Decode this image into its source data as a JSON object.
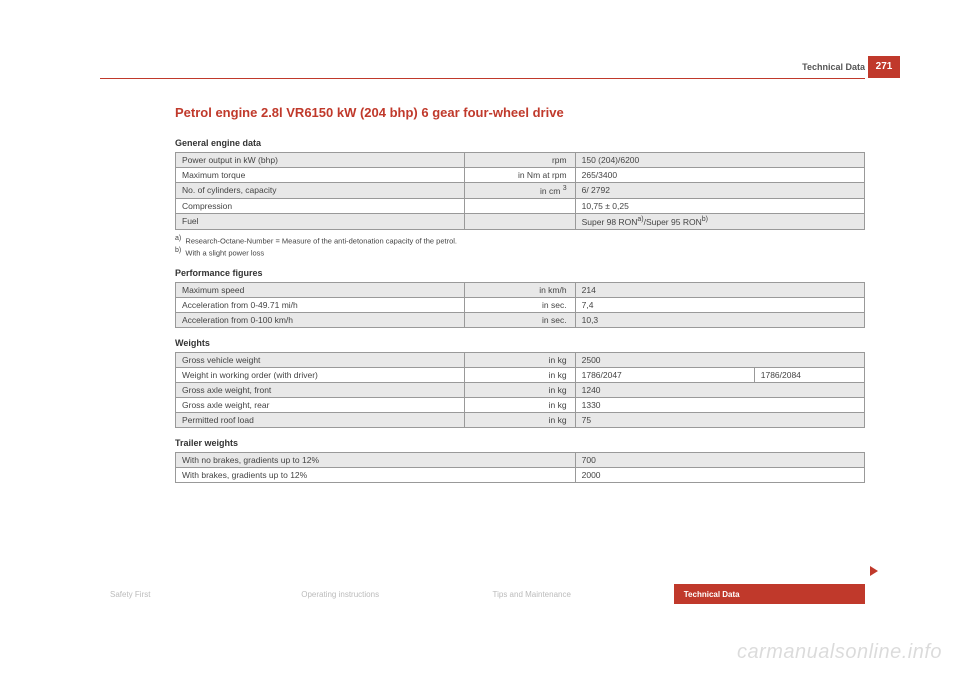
{
  "header": {
    "section": "Technical Data",
    "page_number": "271"
  },
  "title": "Petrol engine 2.8l VR6150 kW (204 bhp) 6 gear four-wheel drive",
  "general_engine": {
    "label": "General engine data",
    "rows": [
      {
        "label": "Power output in kW (bhp)",
        "unit": "rpm",
        "value": "150 (204)/6200"
      },
      {
        "label": "Maximum torque",
        "unit": "in Nm at rpm",
        "value": "265/3400"
      },
      {
        "label": "No. of cylinders, capacity",
        "unit": "in cm",
        "unit_sup": "3",
        "value": "6/ 2792"
      },
      {
        "label": "Compression",
        "unit": "",
        "value": "10,75 ± 0,25"
      },
      {
        "label": "Fuel",
        "unit": "",
        "value_html": "Super 98 RON",
        "sup1": "a)",
        "value_tail": "/Super 95 RON",
        "sup2": "b)"
      }
    ],
    "footnotes": [
      {
        "mark": "a)",
        "text": "Research-Octane-Number = Measure of the anti-detonation capacity of the petrol."
      },
      {
        "mark": "b)",
        "text": "With a slight power loss"
      }
    ]
  },
  "performance": {
    "label": "Performance figures",
    "rows": [
      {
        "label": "Maximum speed",
        "unit": "in km/h",
        "value": "214"
      },
      {
        "label": "Acceleration from 0-49.71 mi/h",
        "unit": "in sec.",
        "value": "7,4"
      },
      {
        "label": "Acceleration from 0-100 km/h",
        "unit": "in sec.",
        "value": "10,3"
      }
    ]
  },
  "weights": {
    "label": "Weights",
    "rows": [
      {
        "label": "Gross vehicle weight",
        "unit": "in kg",
        "value": "2500",
        "value2": ""
      },
      {
        "label": "Weight in working order (with driver)",
        "unit": "in kg",
        "value": "1786/2047",
        "value2": "1786/2084"
      },
      {
        "label": "Gross axle weight, front",
        "unit": "in kg",
        "value": "1240",
        "value2": ""
      },
      {
        "label": "Gross axle weight, rear",
        "unit": "in kg",
        "value": "1330",
        "value2": ""
      },
      {
        "label": "Permitted roof load",
        "unit": "in kg",
        "value": "75",
        "value2": ""
      }
    ]
  },
  "trailer": {
    "label": "Trailer weights",
    "rows": [
      {
        "label": "With no brakes, gradients up to 12%",
        "value": "700"
      },
      {
        "label": "With brakes, gradients up to 12%",
        "value": "2000"
      }
    ]
  },
  "footer_tabs": {
    "t1": "Safety First",
    "t2": "Operating instructions",
    "t3": "Tips and Maintenance",
    "t4": "Technical Data"
  },
  "watermark": "carmanualsonline.info"
}
